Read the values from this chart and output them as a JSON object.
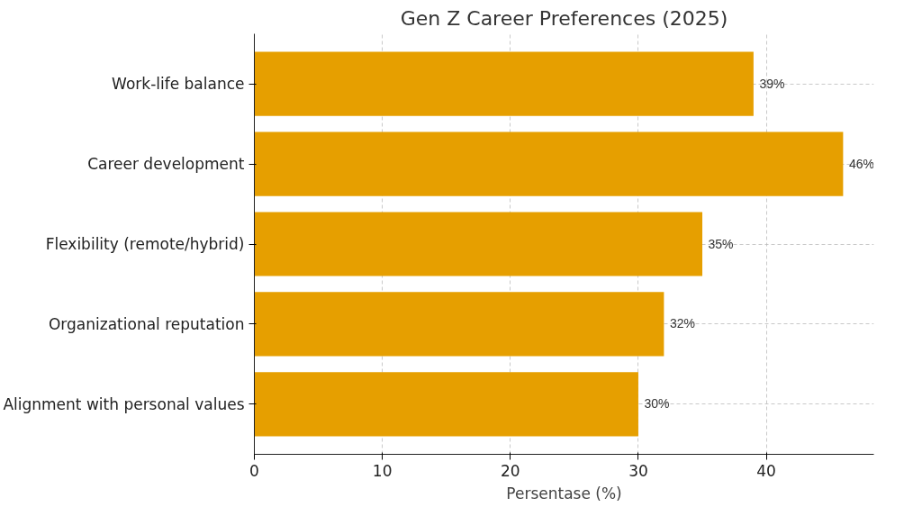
{
  "chart_data": {
    "type": "bar",
    "orientation": "horizontal",
    "title": "Gen Z Career Preferences (2025)",
    "xlabel": "Persentase (%)",
    "categories": [
      "Work-life balance",
      "Career development",
      "Flexibility (remote/hybrid)",
      "Organizational reputation",
      "Alignment with personal values"
    ],
    "values": [
      39,
      46,
      35,
      32,
      30
    ],
    "value_labels": [
      "39%",
      "46%",
      "35%",
      "32%",
      "30%"
    ],
    "color": "#e69f00",
    "xlim": [
      0,
      48.4
    ],
    "xticks": [
      0,
      10,
      20,
      30,
      40
    ],
    "grid": true
  }
}
